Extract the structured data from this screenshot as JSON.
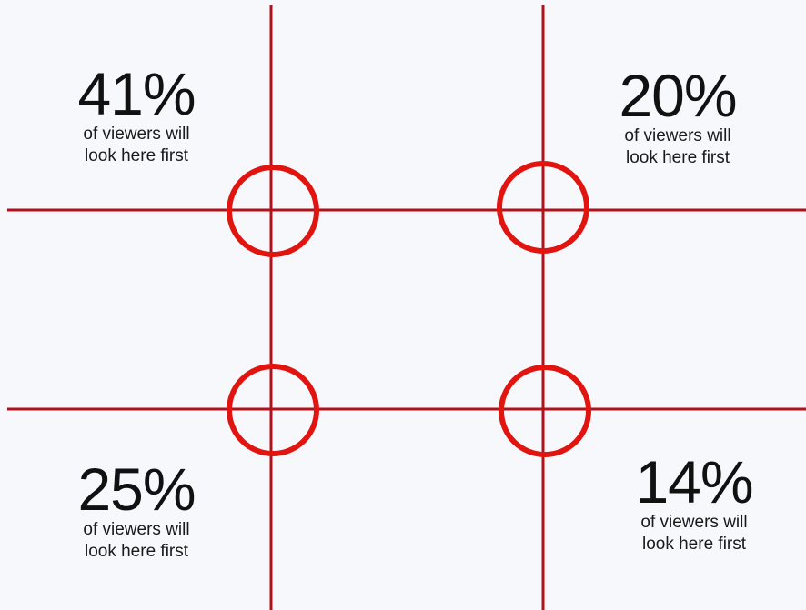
{
  "colors": {
    "background": "#f7f8fc",
    "grid_line": "#b0121b",
    "focus_circle": "#e1140f",
    "text": "#111111"
  },
  "stats": {
    "top_left": {
      "percent": "41%",
      "caption_line1": "of viewers will",
      "caption_line2": "look here first"
    },
    "top_right": {
      "percent": "20%",
      "caption_line1": "of viewers will",
      "caption_line2": "look here first"
    },
    "bottom_left": {
      "percent": "25%",
      "caption_line1": "of viewers will",
      "caption_line2": "look here first"
    },
    "bottom_right": {
      "percent": "14%",
      "caption_line1": "of viewers will",
      "caption_line2": "look here first"
    }
  }
}
